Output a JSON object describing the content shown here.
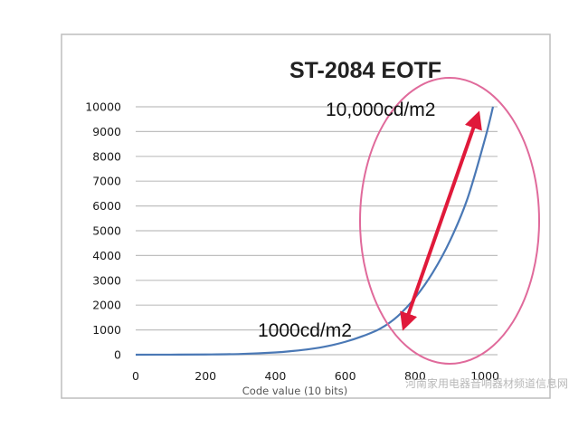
{
  "chart_data": {
    "type": "line",
    "title": "ST-2084 EOTF",
    "xlabel": "Code value (10 bits)",
    "ylabel": "",
    "xlim": [
      0,
      1023
    ],
    "ylim": [
      0,
      10000
    ],
    "x_ticks": [
      "0",
      "200",
      "400",
      "600",
      "800",
      "1000"
    ],
    "y_ticks": [
      "0",
      "1000",
      "2000",
      "3000",
      "4000",
      "5000",
      "6000",
      "7000",
      "8000",
      "9000",
      "10000"
    ],
    "grid": "horizontal",
    "series": [
      {
        "x": [
          0,
          100,
          200,
          300,
          400,
          450,
          500,
          550,
          600,
          650,
          700,
          750,
          800,
          850,
          900,
          950,
          1000,
          1023
        ],
        "y": [
          0,
          3,
          10,
          30,
          90,
          150,
          230,
          350,
          520,
          750,
          1050,
          1550,
          2300,
          3300,
          4600,
          6300,
          8700,
          10000
        ]
      }
    ],
    "annotations": [
      "10,000cd/m2",
      "1000cd/m2"
    ],
    "colors": {
      "line": "#4a78b5",
      "arrow": "#e0193a",
      "ellipse": "#e06a9b",
      "grid": "#bfbfbf"
    }
  },
  "watermark": "河南家用电器音响器材频道信息网"
}
